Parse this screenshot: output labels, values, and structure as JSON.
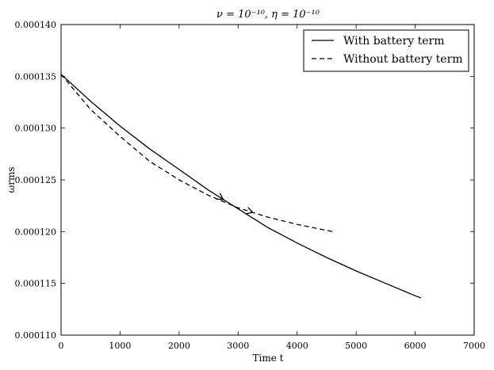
{
  "chart_data": {
    "type": "line",
    "title": "ν = 10⁻¹⁰, η = 10⁻¹⁰",
    "xlabel": "Time t",
    "ylabel": "ωrms",
    "xlim": [
      0,
      7000
    ],
    "ylim": [
      0.00011,
      0.00014
    ],
    "xticks": [
      0,
      1000,
      2000,
      3000,
      4000,
      5000,
      6000,
      7000
    ],
    "yticks": [
      "0.000110",
      "0.000115",
      "0.000120",
      "0.000125",
      "0.000130",
      "0.000135",
      "0.000140"
    ],
    "grid": false,
    "legend_position": "top-right",
    "series": [
      {
        "name": "With battery term",
        "style": "solid",
        "color": "#000000",
        "x": [
          0,
          500,
          1000,
          1500,
          2000,
          2500,
          3000,
          3500,
          4000,
          4500,
          5000,
          5500,
          6000,
          6100
        ],
        "y": [
          0.0001352,
          0.0001326,
          0.0001302,
          0.000128,
          0.000126,
          0.000124,
          0.0001222,
          0.0001204,
          0.0001189,
          0.0001175,
          0.0001162,
          0.000115,
          0.0001138,
          0.0001136
        ],
        "arrow_at_index": 6
      },
      {
        "name": "Without battery term",
        "style": "dashed",
        "color": "#000000",
        "x": [
          0,
          500,
          1000,
          1500,
          2000,
          2500,
          3000,
          3500,
          4000,
          4600
        ],
        "y": [
          0.0001352,
          0.0001318,
          0.0001292,
          0.0001268,
          0.000125,
          0.0001235,
          0.0001223,
          0.0001214,
          0.0001207,
          0.00012
        ],
        "arrow_at_index": 7
      }
    ]
  }
}
